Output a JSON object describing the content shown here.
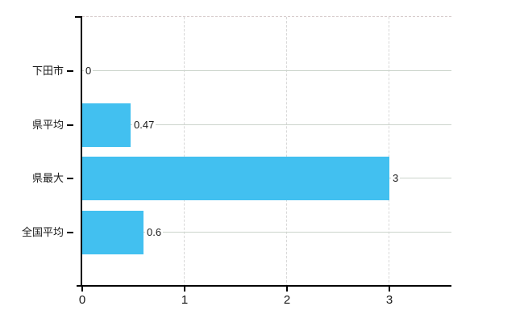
{
  "chart_data": {
    "type": "bar",
    "orientation": "horizontal",
    "categories": [
      "下田市",
      "県平均",
      "県最大",
      "全国平均"
    ],
    "values": [
      0,
      0.47,
      3,
      0.6
    ],
    "value_labels": [
      "0",
      "0.47",
      "3",
      "0.6"
    ],
    "x_ticks": [
      0,
      1,
      2,
      3
    ],
    "x_tick_labels": [
      "0",
      "1",
      "2",
      "3"
    ],
    "xlim": [
      0,
      3.61
    ],
    "grid": true,
    "legend": false,
    "bar_color": "#42c0f0"
  },
  "colors": {
    "background": "#ffffff",
    "bar": "#42c0f0",
    "axis": "#000000",
    "h_gridline": "#ccd4cc",
    "v_gridline": "#d8d8d8",
    "top_border": "#d8cccc",
    "text": "#1a1a1a"
  }
}
